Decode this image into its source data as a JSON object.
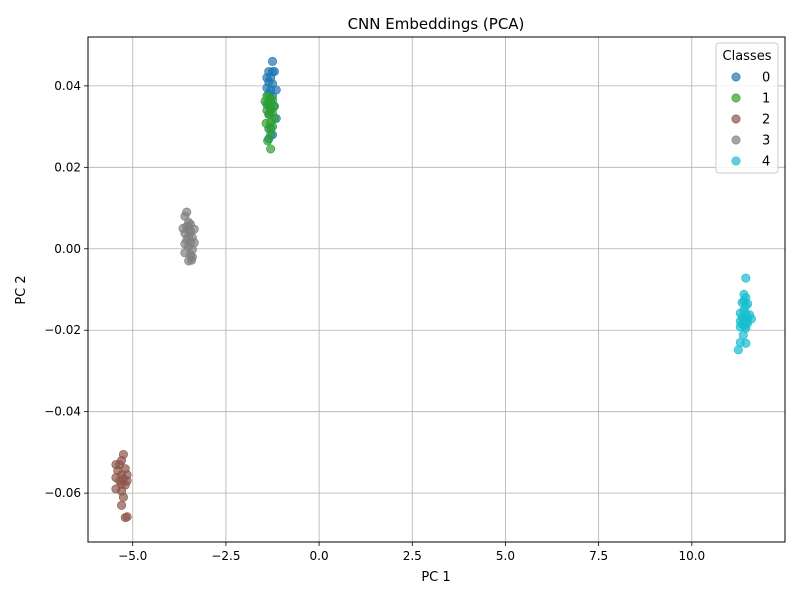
{
  "chart_data": {
    "type": "scatter",
    "title": "CNN Embeddings (PCA)",
    "xlabel": "PC 1",
    "ylabel": "PC 2",
    "xlim": [
      -6.2,
      12.5
    ],
    "ylim": [
      -0.072,
      0.052
    ],
    "x_ticks": [
      -5.0,
      -2.5,
      0.0,
      2.5,
      5.0,
      7.5,
      10.0
    ],
    "x_tick_labels": [
      "−5.0",
      "−2.5",
      "0.0",
      "2.5",
      "5.0",
      "7.5",
      "10.0"
    ],
    "y_ticks": [
      -0.06,
      -0.04,
      -0.02,
      0.0,
      0.02,
      0.04
    ],
    "y_tick_labels": [
      "−0.06",
      "−0.04",
      "−0.02",
      "0.00",
      "0.02",
      "0.04"
    ],
    "grid": true,
    "legend": {
      "title": "Classes",
      "placement": "top-right"
    },
    "series": [
      {
        "name": "0",
        "color": "#1f77b4",
        "points": [
          [
            -1.25,
            0.046
          ],
          [
            -1.35,
            0.0435
          ],
          [
            -1.25,
            0.0435
          ],
          [
            -1.2,
            0.0435
          ],
          [
            -1.4,
            0.042
          ],
          [
            -1.3,
            0.042
          ],
          [
            -1.35,
            0.041
          ],
          [
            -1.25,
            0.0405
          ],
          [
            -1.4,
            0.0395
          ],
          [
            -1.3,
            0.039
          ],
          [
            -1.15,
            0.039
          ],
          [
            -1.35,
            0.038
          ],
          [
            -1.25,
            0.0375
          ],
          [
            -1.3,
            0.036
          ],
          [
            -1.4,
            0.0355
          ],
          [
            -1.2,
            0.035
          ],
          [
            -1.3,
            0.034
          ],
          [
            -1.35,
            0.033
          ],
          [
            -1.15,
            0.032
          ],
          [
            -1.3,
            0.0295
          ],
          [
            -1.25,
            0.028
          ],
          [
            -1.35,
            0.027
          ]
        ]
      },
      {
        "name": "1",
        "color": "#2ca02c",
        "points": [
          [
            -1.4,
            0.0375
          ],
          [
            -1.3,
            0.037
          ],
          [
            -1.25,
            0.0365
          ],
          [
            -1.45,
            0.0362
          ],
          [
            -1.35,
            0.0355
          ],
          [
            -1.2,
            0.035
          ],
          [
            -1.3,
            0.0345
          ],
          [
            -1.4,
            0.034
          ],
          [
            -1.25,
            0.0335
          ],
          [
            -1.35,
            0.033
          ],
          [
            -1.2,
            0.032
          ],
          [
            -1.3,
            0.031
          ],
          [
            -1.42,
            0.0308
          ],
          [
            -1.25,
            0.03
          ],
          [
            -1.35,
            0.0295
          ],
          [
            -1.3,
            0.028
          ],
          [
            -1.38,
            0.0265
          ],
          [
            -1.3,
            0.0245
          ]
        ]
      },
      {
        "name": "2",
        "color": "#8c564b",
        "points": [
          [
            -5.25,
            -0.0505
          ],
          [
            -5.3,
            -0.052
          ],
          [
            -5.45,
            -0.053
          ],
          [
            -5.35,
            -0.053
          ],
          [
            -5.2,
            -0.054
          ],
          [
            -5.4,
            -0.0545
          ],
          [
            -5.3,
            -0.0555
          ],
          [
            -5.15,
            -0.0555
          ],
          [
            -5.45,
            -0.0562
          ],
          [
            -5.25,
            -0.0565
          ],
          [
            -5.35,
            -0.057
          ],
          [
            -5.15,
            -0.057
          ],
          [
            -5.3,
            -0.0578
          ],
          [
            -5.2,
            -0.058
          ],
          [
            -5.45,
            -0.059
          ],
          [
            -5.3,
            -0.0595
          ],
          [
            -5.25,
            -0.061
          ],
          [
            -5.3,
            -0.063
          ],
          [
            -5.2,
            -0.066
          ],
          [
            -5.15,
            -0.0658
          ]
        ]
      },
      {
        "name": "3",
        "color": "#7f7f7f",
        "points": [
          [
            -3.55,
            0.009
          ],
          [
            -3.6,
            0.008
          ],
          [
            -3.5,
            0.0065
          ],
          [
            -3.45,
            0.006
          ],
          [
            -3.55,
            0.0055
          ],
          [
            -3.65,
            0.005
          ],
          [
            -3.5,
            0.0048
          ],
          [
            -3.35,
            0.0048
          ],
          [
            -3.45,
            0.0042
          ],
          [
            -3.6,
            0.0038
          ],
          [
            -3.5,
            0.003
          ],
          [
            -3.4,
            0.0028
          ],
          [
            -3.55,
            0.0022
          ],
          [
            -3.45,
            0.0015
          ],
          [
            -3.6,
            0.0012
          ],
          [
            -3.35,
            0.0015
          ],
          [
            -3.5,
            0.0005
          ],
          [
            -3.4,
            -0.0002
          ],
          [
            -3.6,
            -0.001
          ],
          [
            -3.45,
            -0.0015
          ],
          [
            -3.4,
            -0.002
          ],
          [
            -3.5,
            -0.003
          ],
          [
            -3.42,
            -0.0028
          ]
        ]
      },
      {
        "name": "4",
        "color": "#17becf",
        "points": [
          [
            11.45,
            -0.0072
          ],
          [
            11.4,
            -0.0112
          ],
          [
            11.45,
            -0.012
          ],
          [
            11.4,
            -0.0128
          ],
          [
            11.35,
            -0.0132
          ],
          [
            11.5,
            -0.0135
          ],
          [
            11.45,
            -0.014
          ],
          [
            11.4,
            -0.015
          ],
          [
            11.3,
            -0.0158
          ],
          [
            11.45,
            -0.016
          ],
          [
            11.55,
            -0.0162
          ],
          [
            11.35,
            -0.0168
          ],
          [
            11.5,
            -0.017
          ],
          [
            11.6,
            -0.0172
          ],
          [
            11.4,
            -0.0175
          ],
          [
            11.3,
            -0.0178
          ],
          [
            11.45,
            -0.018
          ],
          [
            11.5,
            -0.0182
          ],
          [
            11.35,
            -0.0185
          ],
          [
            11.42,
            -0.019
          ],
          [
            11.3,
            -0.0192
          ],
          [
            11.45,
            -0.0195
          ],
          [
            11.38,
            -0.0212
          ],
          [
            11.3,
            -0.023
          ],
          [
            11.45,
            -0.0232
          ],
          [
            11.25,
            -0.0248
          ]
        ]
      }
    ]
  }
}
